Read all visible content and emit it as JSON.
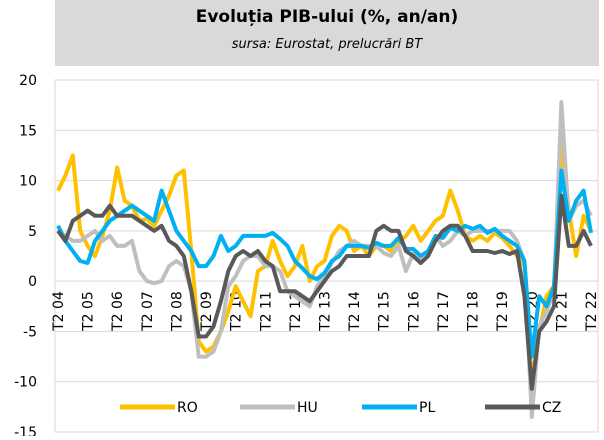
{
  "chart_data": {
    "type": "line",
    "title": "Evoluția PIB-ului (%, an/an)",
    "subtitle": "sursa: Eurostat, prelucrări BT",
    "categories": [
      "T2 04",
      null,
      null,
      null,
      "T2 05",
      null,
      null,
      null,
      "T2 06",
      null,
      null,
      null,
      "T2 07",
      null,
      null,
      null,
      "T2 08",
      null,
      null,
      null,
      "T2 09",
      null,
      null,
      null,
      "T2 10",
      null,
      null,
      null,
      "T2 11",
      null,
      null,
      null,
      "T2 12",
      null,
      null,
      null,
      "T2 13",
      null,
      null,
      null,
      "T2 14",
      null,
      null,
      null,
      "T2 15",
      null,
      null,
      null,
      "T2 16",
      null,
      null,
      null,
      "T2 17",
      null,
      null,
      null,
      "T2 18",
      null,
      null,
      null,
      "T2 19",
      null,
      null,
      null,
      "T2 20",
      null,
      null,
      null,
      "T2 21",
      null,
      null,
      null,
      "T2 22"
    ],
    "series": [
      {
        "name": "RO",
        "color": "#FFC000",
        "values": [
          9,
          10.5,
          12.5,
          5,
          3.5,
          2.5,
          4.5,
          7,
          11.3,
          8,
          7.5,
          6,
          6.2,
          5.5,
          7,
          8.5,
          10.5,
          11,
          3,
          -6,
          -7,
          -6.5,
          -5,
          -3,
          -0.5,
          -2,
          -3.5,
          1,
          1.5,
          4,
          2,
          0.5,
          1.5,
          3.5,
          0,
          1.5,
          2,
          4.5,
          5.5,
          5,
          3,
          3.5,
          2.5,
          3.5,
          3.5,
          3,
          3.8,
          4.5,
          5.5,
          4,
          5,
          6,
          6.5,
          9,
          7,
          4.5,
          4,
          4.5,
          4,
          4.8,
          4.3,
          3.5,
          2.5,
          1.5,
          -10,
          -5,
          -1.5,
          -0.5,
          14,
          7,
          2.5,
          6.5,
          5
        ]
      },
      {
        "name": "HU",
        "color": "#BFBFBF",
        "values": [
          5,
          4.5,
          4,
          4,
          4.5,
          5,
          4,
          4.5,
          3.5,
          3.5,
          4,
          1,
          0,
          -0.2,
          0,
          1.5,
          2,
          1.5,
          -1,
          -7.5,
          -7.5,
          -7,
          -5,
          -0.5,
          0.5,
          2,
          2.5,
          2.5,
          1.5,
          1.5,
          1,
          -1,
          -1.5,
          -2,
          -2.5,
          -0.5,
          0.5,
          1.8,
          3,
          3.5,
          4,
          3.5,
          3.5,
          3.5,
          2.8,
          2.5,
          3.5,
          1,
          2.8,
          2,
          2.5,
          4.5,
          3.5,
          4,
          5,
          4.5,
          5,
          5,
          5,
          5,
          5,
          5,
          4,
          2,
          -13.5,
          -4.5,
          -3,
          -1,
          17.8,
          6,
          7.5,
          8,
          6.5
        ]
      },
      {
        "name": "PL",
        "color": "#00B0F0",
        "values": [
          5.5,
          4,
          3,
          2,
          1.8,
          4,
          5,
          6,
          6.5,
          7,
          7.5,
          7,
          6.5,
          6,
          9,
          7,
          5,
          4,
          3,
          1.5,
          1.5,
          2.5,
          4.5,
          3,
          3.5,
          4.5,
          4.5,
          4.5,
          4.5,
          4.8,
          4.2,
          3.5,
          2,
          1.3,
          0.5,
          0.2,
          0.8,
          2,
          2.5,
          3.5,
          3.5,
          3.5,
          3.3,
          3.8,
          3.5,
          3.5,
          4.3,
          3.2,
          3.2,
          2.5,
          3,
          4.5,
          4.3,
          5.3,
          5,
          5.5,
          5.2,
          5.5,
          4.8,
          5.2,
          4.5,
          4,
          3.5,
          2,
          -7.5,
          -1.5,
          -2.5,
          -0.5,
          11,
          6,
          8,
          9,
          4.8
        ]
      },
      {
        "name": "CZ",
        "color": "#595959",
        "values": [
          5,
          4,
          6,
          6.5,
          7,
          6.5,
          6.5,
          7.5,
          6.5,
          6.5,
          6.5,
          6,
          5.5,
          5,
          5.5,
          4,
          3.5,
          2.5,
          -1,
          -5.5,
          -5.5,
          -4.5,
          -2,
          1,
          2.5,
          3,
          2.5,
          3,
          2,
          1.5,
          -1,
          -1,
          -1,
          -1.5,
          -2,
          -1,
          0,
          1,
          1.5,
          2.5,
          2.5,
          2.5,
          2.5,
          5,
          5.5,
          5,
          5,
          3,
          2.5,
          1.8,
          2.5,
          4,
          5,
          5.5,
          5.5,
          4.5,
          3,
          3,
          3,
          2.8,
          3,
          2.7,
          3,
          -1.5,
          -10.7,
          -5,
          -4,
          -2.5,
          8.5,
          3.5,
          3.5,
          5,
          3.5
        ]
      }
    ],
    "ylim": [
      -15,
      20
    ],
    "yticks": [
      -15,
      -10,
      -5,
      0,
      5,
      10,
      15,
      20
    ],
    "grid": true,
    "legend": "bottom"
  }
}
